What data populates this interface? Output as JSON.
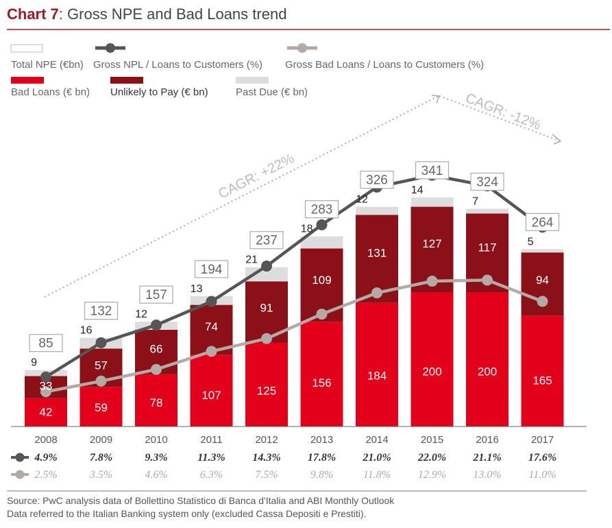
{
  "header": {
    "title_prefix": "Chart 7",
    "title_rest": ": Gross NPE and Bad Loans trend"
  },
  "legend": {
    "total_npe": "Total NPE (€bn)",
    "npl_ratio": "Gross NPL / Loans to Customers (%)",
    "bad_ratio": "Gross Bad Loans / Loans to Customers (%)",
    "bad_loans": "Bad Loans (€ bn)",
    "utp": "Unlikely to Pay (€ bn)",
    "past_due": "Past Due (€ bn)"
  },
  "cagr": {
    "up": "CAGR: +22%",
    "down": "CAGR: -12%"
  },
  "source": {
    "line1": "Source: PwC analysis data of Bollettino Statistico di Banca d'Italia and ABI Monthly Outlook",
    "line2": "Data referred to the Italian Banking system only (excluded Cassa Depositi e Prestiti)."
  },
  "colors": {
    "bad_loans": "#e2001a",
    "utp": "#8b1018",
    "past_due": "#dddddd",
    "npl_line": "#555555",
    "bad_line": "#b3aaa5",
    "title_accent": "#9e1b23"
  },
  "chart_data": {
    "type": "bar",
    "stacked": true,
    "categories": [
      "2008",
      "2009",
      "2010",
      "2011",
      "2012",
      "2013",
      "2014",
      "2015",
      "2016",
      "2017"
    ],
    "series": [
      {
        "name": "Bad Loans (€ bn)",
        "values": [
          42,
          59,
          78,
          107,
          125,
          156,
          184,
          200,
          200,
          165
        ]
      },
      {
        "name": "Unlikely to Pay (€ bn)",
        "values": [
          33,
          57,
          66,
          74,
          91,
          109,
          131,
          127,
          117,
          94
        ]
      },
      {
        "name": "Past Due (€ bn)",
        "values": [
          9,
          16,
          12,
          13,
          21,
          18,
          12,
          14,
          7,
          5
        ]
      }
    ],
    "totals": {
      "name": "Total NPE (€bn)",
      "values": [
        85,
        132,
        157,
        194,
        237,
        283,
        326,
        341,
        324,
        264
      ]
    },
    "lines": [
      {
        "name": "Gross NPL / Loans to Customers (%)",
        "values": [
          4.9,
          7.8,
          9.3,
          11.3,
          14.3,
          17.8,
          21.0,
          22.0,
          21.1,
          17.6
        ],
        "labels": [
          "4.9%",
          "7.8%",
          "9.3%",
          "11.3%",
          "14.3%",
          "17.8%",
          "21.0%",
          "22.0%",
          "21.1%",
          "17.6%"
        ]
      },
      {
        "name": "Gross Bad Loans / Loans to Customers (%)",
        "values": [
          2.5,
          3.5,
          4.6,
          6.3,
          7.5,
          9.8,
          11.8,
          12.9,
          13.0,
          11.0
        ],
        "labels": [
          "2.5%",
          "3.5%",
          "4.6%",
          "6.3%",
          "7.5%",
          "9.8%",
          "11.8%",
          "12.9%",
          "13.0%",
          "11.0%"
        ]
      }
    ],
    "ylim": [
      0,
      360
    ],
    "grid": false,
    "legend_position": "top"
  }
}
